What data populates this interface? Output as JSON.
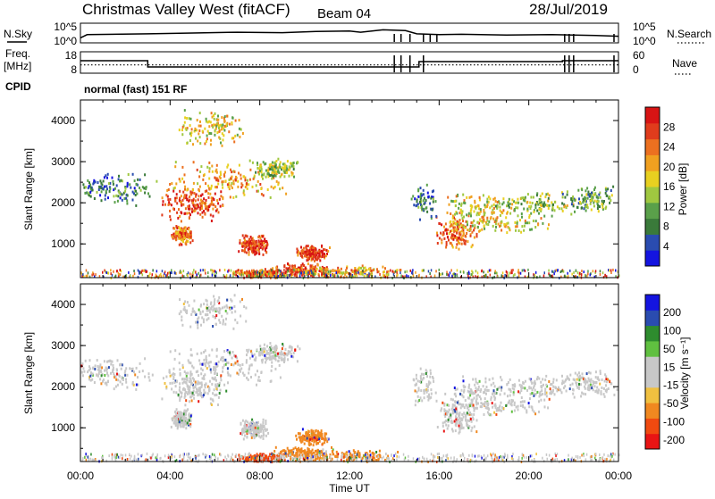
{
  "header": {
    "station": "Christmas Valley West (fitACF)",
    "beam": "Beam 04",
    "date": "28/Jul/2019"
  },
  "left_labels": {
    "nsky": "N.Sky",
    "freq_line1": "Freq.",
    "freq_line2": "[MHz]",
    "cpid": "CPID"
  },
  "right_labels": {
    "nsearch": "N.Search",
    "nave": "Nave"
  },
  "cpid_text": "normal (fast) 151 RF",
  "colors": {
    "power": [
      "#1414e0",
      "#2a4cb0",
      "#3a7a3a",
      "#5aa04a",
      "#a0c840",
      "#e8d020",
      "#f0a020",
      "#ec7020",
      "#e03c1c",
      "#d81414"
    ],
    "velocity": [
      "#e81414",
      "#f04a10",
      "#f08820",
      "#f0c040",
      "#c8c8c8",
      "#c8c8c8",
      "#60c040",
      "#2e8c2e",
      "#2a4cb0",
      "#1414e0"
    ]
  },
  "chart_data": [
    {
      "type": "line",
      "panel": "nsky-nsearch",
      "ylabel_left": "N.Sky",
      "ylabel_right": "N.Search",
      "left_ticks": [
        "10^5",
        "10^0"
      ],
      "right_ticks": [
        "10^5",
        "10^0"
      ],
      "x_hours": [
        0,
        0.3,
        3,
        5,
        7,
        9,
        10.5,
        12,
        12.5,
        13.5,
        14.5,
        15,
        16,
        17,
        19,
        21,
        23,
        24
      ],
      "series": [
        {
          "values": [
            0.2,
            0.4,
            0.45,
            0.5,
            0.55,
            0.52,
            0.6,
            0.62,
            0.55,
            0.7,
            0.65,
            0.45,
            0.4,
            0.42,
            0.38,
            0.4,
            0.35,
            0.3
          ]
        }
      ]
    },
    {
      "type": "line",
      "panel": "freq-nave",
      "ylabel_left": "Freq. [MHz]",
      "ylabel_right": "Nave",
      "left_ticks": [
        "18",
        "8"
      ],
      "right_ticks": [
        "60",
        "0"
      ],
      "freq_segments_hours": [
        [
          0,
          3.0,
          14
        ],
        [
          3.0,
          15.1,
          10.5
        ],
        [
          15.1,
          21.5,
          13.5
        ],
        [
          21.5,
          24,
          14
        ]
      ],
      "nave_level": 22
    },
    {
      "type": "heatmap",
      "panel": "power",
      "ylabel": "Slant Range [km]",
      "yticks": [
        "1000",
        "2000",
        "3000",
        "4000"
      ],
      "colorbar_label": "Power [dB]",
      "colorbar_ticks": [
        "4",
        "8",
        "12",
        "16",
        "20",
        "24",
        "28"
      ],
      "ylim": [
        180,
        4500
      ],
      "x_hours_range": [
        0,
        24
      ]
    },
    {
      "type": "heatmap",
      "panel": "velocity",
      "ylabel": "Slant Range [km]",
      "yticks": [
        "1000",
        "2000",
        "3000",
        "4000"
      ],
      "colorbar_label": "Velocity [m s⁻¹]",
      "colorbar_ticks": [
        "200",
        "100",
        "50",
        "15",
        "-15",
        "-50",
        "-100",
        "-200"
      ],
      "ylim": [
        180,
        4500
      ],
      "x_hours_range": [
        0,
        24
      ]
    }
  ],
  "xaxis": {
    "ticks": [
      "00:00",
      "04:00",
      "08:00",
      "12:00",
      "16:00",
      "20:00",
      "00:00"
    ],
    "label": "Time UT"
  }
}
